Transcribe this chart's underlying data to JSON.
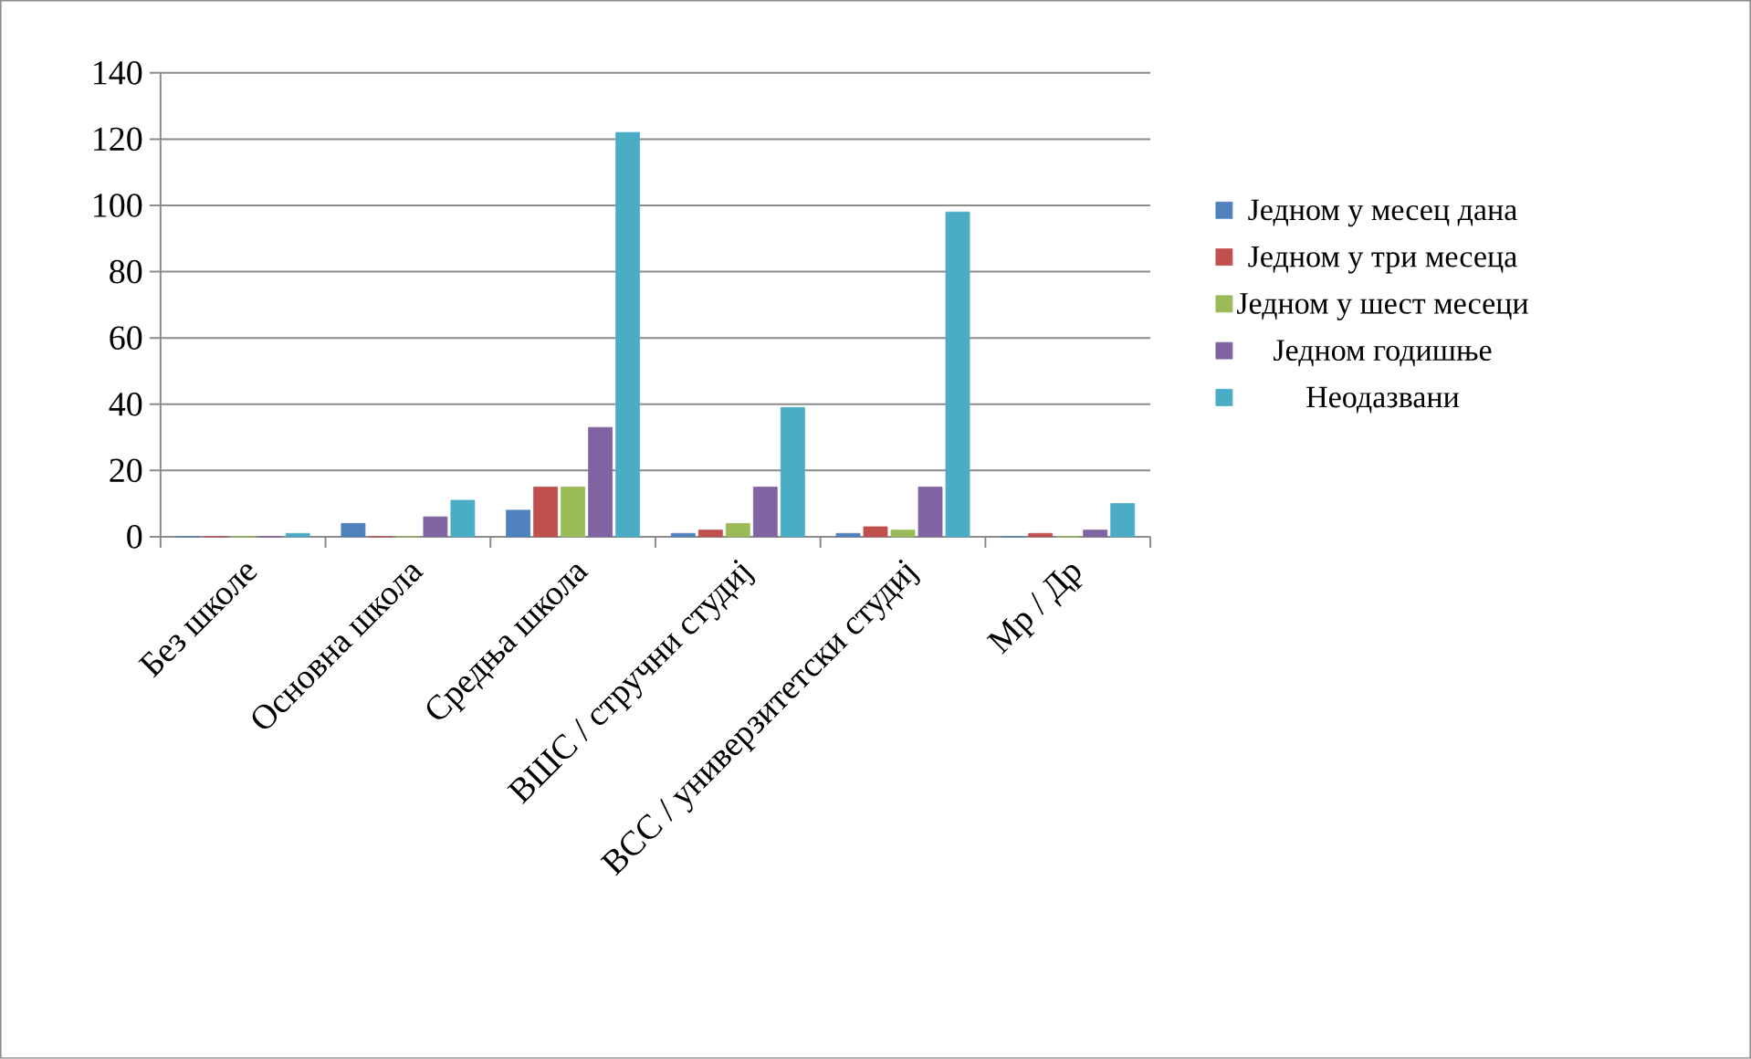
{
  "chart_data": {
    "type": "bar",
    "categories": [
      "Без школе",
      "Основна школа",
      "Средња школа",
      "ВШС / стручни студиј",
      "ВСС / универзитетски студиј",
      "Мр / Др"
    ],
    "series": [
      {
        "name": "Једном у месец дана",
        "color": "#4f81bd",
        "values": [
          0,
          4,
          8,
          1,
          1,
          0
        ]
      },
      {
        "name": "Једном у три месеца",
        "color": "#c0504d",
        "values": [
          0,
          0,
          15,
          2,
          3,
          1
        ]
      },
      {
        "name": "Једном у шест месеци",
        "color": "#9bbb59",
        "values": [
          0,
          0,
          15,
          4,
          2,
          0
        ]
      },
      {
        "name": "Једном годишње",
        "color": "#8064a2",
        "values": [
          0,
          6,
          33,
          15,
          15,
          2
        ]
      },
      {
        "name": "Неодазвани",
        "color": "#4bacc6",
        "values": [
          1,
          11,
          122,
          39,
          98,
          10
        ]
      }
    ],
    "ylim": [
      0,
      140
    ],
    "yticks": [
      0,
      20,
      40,
      60,
      80,
      100,
      120,
      140
    ],
    "grid": "y",
    "legend": "right"
  }
}
